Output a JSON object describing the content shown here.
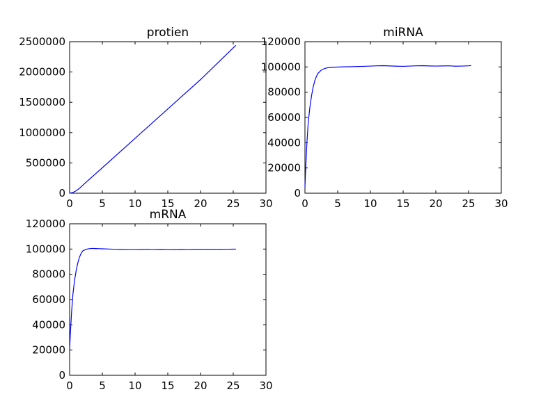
{
  "chart_data": [
    {
      "type": "line",
      "title": "protien",
      "xlabel": "",
      "ylabel": "",
      "xlim": [
        0,
        30
      ],
      "ylim": [
        0,
        2500000
      ],
      "xticks": [
        0,
        5,
        10,
        15,
        20,
        25,
        30
      ],
      "yticks": [
        0,
        500000,
        1000000,
        1500000,
        2000000,
        2500000
      ],
      "x_tick_labels": [
        "0",
        "5",
        "10",
        "15",
        "20",
        "25",
        "30"
      ],
      "y_tick_labels": [
        "0",
        "500000",
        "1000000",
        "1500000",
        "2000000",
        "2500000"
      ],
      "grid": false,
      "line_color": "#0000ff",
      "series": [
        {
          "x": [
            0,
            0.5,
            1.0,
            1.5,
            2.0,
            2.5,
            3,
            5,
            10,
            15,
            20,
            25.4
          ],
          "values": [
            0,
            12000,
            40000,
            80000,
            130000,
            180000,
            228000,
            420000,
            905000,
            1390000,
            1875000,
            2440000
          ]
        }
      ]
    },
    {
      "type": "line",
      "title": "miRNA",
      "xlabel": "",
      "ylabel": "",
      "xlim": [
        0,
        30
      ],
      "ylim": [
        0,
        120000
      ],
      "xticks": [
        0,
        5,
        10,
        15,
        20,
        25,
        30
      ],
      "yticks": [
        0,
        20000,
        40000,
        60000,
        80000,
        100000,
        120000
      ],
      "x_tick_labels": [
        "0",
        "5",
        "10",
        "15",
        "20",
        "25",
        "30"
      ],
      "y_tick_labels": [
        "0",
        "20000",
        "40000",
        "60000",
        "80000",
        "100000",
        "120000"
      ],
      "grid": false,
      "line_color": "#0000ff",
      "series": [
        {
          "x": [
            0,
            0.1,
            0.3,
            0.5,
            0.75,
            1.0,
            1.25,
            1.5,
            1.75,
            2.0,
            2.5,
            3.0,
            3.5,
            4,
            5,
            6,
            7,
            8,
            9,
            10,
            11,
            12,
            13,
            14,
            15,
            16,
            17,
            18,
            19,
            20,
            21,
            22,
            23,
            24,
            25,
            25.4
          ],
          "values": [
            5000,
            18000,
            40000,
            56000,
            68000,
            77000,
            84000,
            89000,
            92500,
            95000,
            97500,
            98800,
            99400,
            99700,
            99900,
            100100,
            100200,
            100400,
            100500,
            100700,
            100900,
            101000,
            100800,
            100600,
            100500,
            100700,
            100900,
            101000,
            100800,
            100700,
            100800,
            100900,
            100600,
            100700,
            100900,
            101100
          ]
        }
      ]
    },
    {
      "type": "line",
      "title": "mRNA",
      "xlabel": "",
      "ylabel": "",
      "xlim": [
        0,
        30
      ],
      "ylim": [
        0,
        120000
      ],
      "xticks": [
        0,
        5,
        10,
        15,
        20,
        25,
        30
      ],
      "yticks": [
        0,
        20000,
        40000,
        60000,
        80000,
        100000,
        120000
      ],
      "x_tick_labels": [
        "0",
        "5",
        "10",
        "15",
        "20",
        "25",
        "30"
      ],
      "y_tick_labels": [
        "0",
        "20000",
        "40000",
        "60000",
        "80000",
        "100000",
        "120000"
      ],
      "grid": false,
      "line_color": "#0000ff",
      "series": [
        {
          "x": [
            0,
            0.1,
            0.3,
            0.5,
            0.75,
            1.0,
            1.25,
            1.5,
            1.75,
            2.0,
            2.5,
            3.0,
            3.5,
            4,
            4.5,
            5,
            6,
            7,
            8,
            9,
            10,
            11,
            12,
            13,
            14,
            15,
            16,
            17,
            18,
            19,
            20,
            21,
            22,
            23,
            24,
            25,
            25.4
          ],
          "values": [
            20000,
            32000,
            50000,
            64000,
            75000,
            83000,
            89000,
            93500,
            96500,
            98500,
            99800,
            100300,
            100500,
            100400,
            100300,
            100200,
            100000,
            99800,
            99700,
            99600,
            99600,
            99700,
            99800,
            99600,
            99700,
            99600,
            99500,
            99700,
            99600,
            99700,
            99800,
            99700,
            99800,
            99700,
            99800,
            99900,
            99900
          ]
        }
      ]
    }
  ]
}
